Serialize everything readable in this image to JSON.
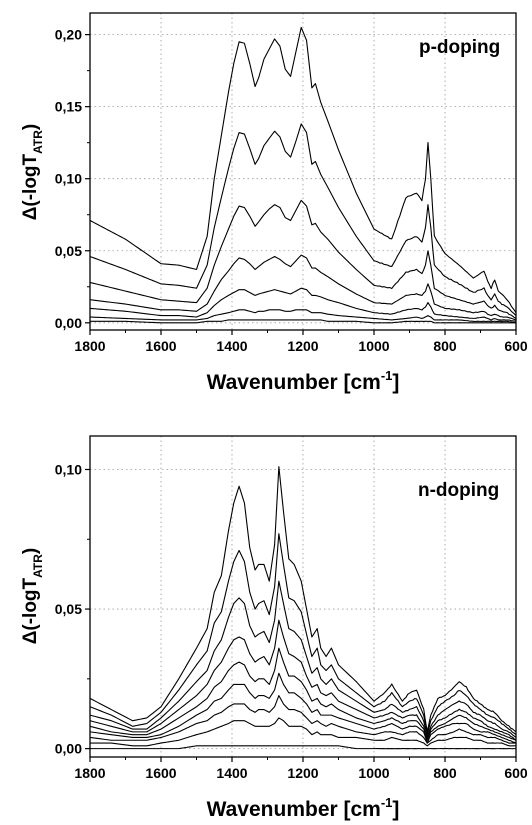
{
  "chart_data": [
    {
      "type": "line",
      "annotation": "p-doping",
      "xlabel_main": "Wavenumber [cm",
      "xlabel_sup": "-1",
      "xlabel_close": "]",
      "ylabel_main": "Δ(-logT",
      "ylabel_sub": "ATR",
      "ylabel_close": ")",
      "xlim": [
        1800,
        600
      ],
      "ylim": [
        -0.005,
        0.215
      ],
      "x_ticks": [
        1800,
        1600,
        1400,
        1200,
        1000,
        800,
        600
      ],
      "x_tick_labels": [
        "1800",
        "1600",
        "1400",
        "1200",
        "1000",
        "800",
        "600"
      ],
      "y_ticks": [
        0,
        0.05,
        0.1,
        0.15,
        0.2
      ],
      "y_tick_labels": [
        "0,00",
        "0,05",
        "0,10",
        "0,15",
        "0,20"
      ],
      "grid": true,
      "x": [
        1800,
        1700,
        1600,
        1550,
        1500,
        1470,
        1450,
        1430,
        1410,
        1395,
        1380,
        1365,
        1350,
        1335,
        1325,
        1310,
        1295,
        1280,
        1265,
        1250,
        1235,
        1220,
        1205,
        1190,
        1175,
        1165,
        1150,
        1130,
        1100,
        1050,
        1000,
        950,
        910,
        880,
        865,
        855,
        848,
        840,
        830,
        800,
        760,
        720,
        690,
        680,
        670,
        660,
        650,
        640,
        625,
        600
      ],
      "series": [
        {
          "values": [
            0.071,
            0.058,
            0.041,
            0.04,
            0.037,
            0.06,
            0.1,
            0.13,
            0.16,
            0.18,
            0.195,
            0.194,
            0.18,
            0.164,
            0.17,
            0.183,
            0.19,
            0.197,
            0.192,
            0.176,
            0.171,
            0.188,
            0.205,
            0.196,
            0.163,
            0.166,
            0.153,
            0.14,
            0.12,
            0.09,
            0.065,
            0.058,
            0.087,
            0.09,
            0.085,
            0.1,
            0.125,
            0.1,
            0.06,
            0.048,
            0.04,
            0.031,
            0.036,
            0.029,
            0.024,
            0.03,
            0.022,
            0.02,
            0.016,
            0.007
          ]
        },
        {
          "values": [
            0.046,
            0.037,
            0.027,
            0.026,
            0.024,
            0.04,
            0.066,
            0.087,
            0.107,
            0.121,
            0.132,
            0.131,
            0.121,
            0.11,
            0.114,
            0.123,
            0.128,
            0.133,
            0.129,
            0.119,
            0.115,
            0.126,
            0.138,
            0.132,
            0.11,
            0.112,
            0.103,
            0.094,
            0.08,
            0.06,
            0.043,
            0.039,
            0.057,
            0.06,
            0.056,
            0.066,
            0.082,
            0.066,
            0.04,
            0.032,
            0.027,
            0.021,
            0.024,
            0.019,
            0.016,
            0.02,
            0.015,
            0.013,
            0.011,
            0.005
          ]
        },
        {
          "values": [
            0.028,
            0.022,
            0.016,
            0.015,
            0.014,
            0.024,
            0.04,
            0.053,
            0.065,
            0.074,
            0.081,
            0.08,
            0.074,
            0.067,
            0.07,
            0.075,
            0.079,
            0.082,
            0.08,
            0.073,
            0.071,
            0.078,
            0.085,
            0.081,
            0.068,
            0.069,
            0.063,
            0.058,
            0.049,
            0.037,
            0.026,
            0.024,
            0.035,
            0.037,
            0.034,
            0.04,
            0.05,
            0.04,
            0.024,
            0.019,
            0.016,
            0.013,
            0.015,
            0.012,
            0.01,
            0.012,
            0.009,
            0.008,
            0.007,
            0.003
          ]
        },
        {
          "values": [
            0.016,
            0.013,
            0.009,
            0.009,
            0.008,
            0.013,
            0.022,
            0.03,
            0.036,
            0.041,
            0.045,
            0.044,
            0.041,
            0.037,
            0.039,
            0.042,
            0.044,
            0.046,
            0.044,
            0.041,
            0.039,
            0.043,
            0.047,
            0.045,
            0.038,
            0.038,
            0.035,
            0.032,
            0.027,
            0.02,
            0.014,
            0.013,
            0.019,
            0.02,
            0.019,
            0.022,
            0.027,
            0.022,
            0.013,
            0.01,
            0.009,
            0.007,
            0.008,
            0.006,
            0.005,
            0.006,
            0.005,
            0.004,
            0.004,
            0.002
          ]
        },
        {
          "values": [
            0.01,
            0.008,
            0.005,
            0.005,
            0.004,
            0.007,
            0.012,
            0.016,
            0.019,
            0.021,
            0.023,
            0.023,
            0.021,
            0.019,
            0.02,
            0.021,
            0.022,
            0.023,
            0.022,
            0.021,
            0.02,
            0.022,
            0.024,
            0.023,
            0.019,
            0.019,
            0.018,
            0.016,
            0.014,
            0.01,
            0.007,
            0.006,
            0.009,
            0.01,
            0.009,
            0.011,
            0.014,
            0.011,
            0.006,
            0.005,
            0.004,
            0.003,
            0.004,
            0.003,
            0.002,
            0.003,
            0.002,
            0.002,
            0.002,
            0.001
          ]
        },
        {
          "values": [
            0.004,
            0.003,
            0.002,
            0.002,
            0.002,
            0.003,
            0.005,
            0.006,
            0.007,
            0.008,
            0.009,
            0.009,
            0.008,
            0.007,
            0.008,
            0.008,
            0.009,
            0.009,
            0.009,
            0.008,
            0.008,
            0.009,
            0.009,
            0.009,
            0.007,
            0.007,
            0.007,
            0.006,
            0.005,
            0.004,
            0.003,
            0.002,
            0.003,
            0.004,
            0.003,
            0.004,
            0.005,
            0.004,
            0.002,
            0.002,
            0.002,
            0.001,
            0.001,
            0.001,
            0.001,
            0.001,
            0.001,
            0.001,
            0.001,
            0.0
          ]
        },
        {
          "values": [
            0.001,
            0.001,
            0.0,
            0.0,
            0.0,
            0.001,
            0.001,
            0.001,
            0.002,
            0.002,
            0.002,
            0.002,
            0.002,
            0.002,
            0.002,
            0.002,
            0.002,
            0.002,
            0.002,
            0.002,
            0.002,
            0.002,
            0.002,
            0.002,
            0.002,
            0.002,
            0.002,
            0.001,
            0.001,
            0.001,
            0.0,
            0.0,
            0.001,
            0.001,
            0.001,
            0.001,
            0.001,
            0.001,
            0.0,
            0.0,
            0.0,
            0.0,
            0.0,
            0.0,
            0.0,
            0.0,
            0.0,
            0.0,
            0.0,
            0.0
          ]
        }
      ]
    },
    {
      "type": "line",
      "annotation": "n-doping",
      "xlabel_main": "Wavenumber [cm",
      "xlabel_sup": "-1",
      "xlabel_close": "]",
      "ylabel_main": "Δ(-logT",
      "ylabel_sub": "ATR",
      "ylabel_close": ")",
      "xlim": [
        1800,
        600
      ],
      "ylim": [
        -0.003,
        0.112
      ],
      "x_ticks": [
        1800,
        1600,
        1400,
        1200,
        1000,
        800,
        600
      ],
      "x_tick_labels": [
        "1800",
        "1600",
        "1400",
        "1200",
        "1000",
        "800",
        "600"
      ],
      "y_ticks": [
        0,
        0.05,
        0.1
      ],
      "y_tick_labels": [
        "0,00",
        "0,05",
        "0,10"
      ],
      "grid": true,
      "x": [
        1800,
        1740,
        1680,
        1640,
        1600,
        1550,
        1500,
        1470,
        1450,
        1430,
        1410,
        1395,
        1380,
        1365,
        1350,
        1335,
        1325,
        1310,
        1295,
        1280,
        1268,
        1255,
        1240,
        1225,
        1205,
        1190,
        1175,
        1160,
        1150,
        1135,
        1120,
        1100,
        1050,
        1000,
        970,
        950,
        920,
        900,
        880,
        860,
        850,
        840,
        820,
        800,
        775,
        760,
        740,
        720,
        700,
        680,
        660,
        640,
        620,
        600
      ],
      "series": [
        {
          "values": [
            0.018,
            0.014,
            0.01,
            0.011,
            0.015,
            0.025,
            0.036,
            0.043,
            0.056,
            0.062,
            0.078,
            0.088,
            0.094,
            0.088,
            0.072,
            0.064,
            0.066,
            0.066,
            0.06,
            0.073,
            0.101,
            0.085,
            0.068,
            0.066,
            0.06,
            0.05,
            0.04,
            0.043,
            0.036,
            0.033,
            0.036,
            0.03,
            0.024,
            0.017,
            0.02,
            0.023,
            0.017,
            0.02,
            0.021,
            0.014,
            0.006,
            0.012,
            0.018,
            0.019,
            0.022,
            0.024,
            0.022,
            0.018,
            0.016,
            0.014,
            0.013,
            0.01,
            0.008,
            0.006
          ]
        },
        {
          "values": [
            0.015,
            0.012,
            0.008,
            0.009,
            0.013,
            0.021,
            0.03,
            0.035,
            0.045,
            0.049,
            0.06,
            0.067,
            0.071,
            0.067,
            0.056,
            0.05,
            0.052,
            0.053,
            0.048,
            0.058,
            0.077,
            0.066,
            0.054,
            0.053,
            0.049,
            0.041,
            0.033,
            0.036,
            0.03,
            0.028,
            0.03,
            0.025,
            0.02,
            0.015,
            0.017,
            0.02,
            0.015,
            0.017,
            0.018,
            0.012,
            0.005,
            0.01,
            0.015,
            0.017,
            0.019,
            0.021,
            0.019,
            0.016,
            0.014,
            0.012,
            0.011,
            0.009,
            0.007,
            0.005
          ]
        },
        {
          "values": [
            0.012,
            0.01,
            0.007,
            0.007,
            0.011,
            0.017,
            0.024,
            0.028,
            0.035,
            0.039,
            0.047,
            0.052,
            0.054,
            0.052,
            0.044,
            0.04,
            0.041,
            0.042,
            0.038,
            0.046,
            0.06,
            0.052,
            0.043,
            0.042,
            0.039,
            0.033,
            0.027,
            0.029,
            0.025,
            0.023,
            0.025,
            0.021,
            0.017,
            0.013,
            0.014,
            0.016,
            0.013,
            0.014,
            0.015,
            0.01,
            0.004,
            0.008,
            0.012,
            0.014,
            0.016,
            0.017,
            0.016,
            0.013,
            0.012,
            0.01,
            0.009,
            0.007,
            0.006,
            0.004
          ]
        },
        {
          "values": [
            0.01,
            0.008,
            0.006,
            0.006,
            0.009,
            0.014,
            0.019,
            0.023,
            0.028,
            0.031,
            0.036,
            0.039,
            0.04,
            0.039,
            0.034,
            0.031,
            0.032,
            0.033,
            0.03,
            0.036,
            0.046,
            0.04,
            0.034,
            0.033,
            0.031,
            0.026,
            0.022,
            0.023,
            0.02,
            0.019,
            0.02,
            0.017,
            0.014,
            0.011,
            0.012,
            0.013,
            0.011,
            0.012,
            0.012,
            0.008,
            0.003,
            0.007,
            0.01,
            0.011,
            0.013,
            0.014,
            0.013,
            0.011,
            0.01,
            0.008,
            0.007,
            0.006,
            0.005,
            0.003
          ]
        },
        {
          "values": [
            0.008,
            0.006,
            0.005,
            0.005,
            0.007,
            0.011,
            0.015,
            0.018,
            0.022,
            0.024,
            0.028,
            0.03,
            0.031,
            0.03,
            0.026,
            0.024,
            0.025,
            0.025,
            0.023,
            0.028,
            0.036,
            0.031,
            0.026,
            0.026,
            0.024,
            0.021,
            0.017,
            0.018,
            0.016,
            0.015,
            0.016,
            0.014,
            0.011,
            0.009,
            0.01,
            0.011,
            0.009,
            0.01,
            0.01,
            0.007,
            0.003,
            0.006,
            0.008,
            0.009,
            0.011,
            0.012,
            0.011,
            0.009,
            0.008,
            0.007,
            0.006,
            0.005,
            0.004,
            0.003
          ]
        },
        {
          "values": [
            0.006,
            0.005,
            0.004,
            0.004,
            0.005,
            0.008,
            0.012,
            0.014,
            0.017,
            0.018,
            0.021,
            0.023,
            0.023,
            0.023,
            0.02,
            0.018,
            0.019,
            0.019,
            0.018,
            0.021,
            0.027,
            0.023,
            0.02,
            0.02,
            0.018,
            0.016,
            0.013,
            0.014,
            0.012,
            0.012,
            0.012,
            0.011,
            0.009,
            0.007,
            0.008,
            0.009,
            0.007,
            0.008,
            0.008,
            0.006,
            0.002,
            0.005,
            0.007,
            0.008,
            0.009,
            0.009,
            0.009,
            0.007,
            0.006,
            0.006,
            0.005,
            0.004,
            0.003,
            0.002
          ]
        },
        {
          "values": [
            0.004,
            0.003,
            0.003,
            0.003,
            0.004,
            0.006,
            0.009,
            0.01,
            0.012,
            0.013,
            0.015,
            0.016,
            0.016,
            0.016,
            0.014,
            0.013,
            0.014,
            0.014,
            0.013,
            0.015,
            0.019,
            0.016,
            0.014,
            0.014,
            0.013,
            0.011,
            0.009,
            0.01,
            0.009,
            0.008,
            0.009,
            0.008,
            0.006,
            0.005,
            0.006,
            0.006,
            0.005,
            0.006,
            0.006,
            0.004,
            0.002,
            0.003,
            0.005,
            0.005,
            0.006,
            0.007,
            0.006,
            0.005,
            0.005,
            0.004,
            0.004,
            0.003,
            0.002,
            0.002
          ]
        },
        {
          "values": [
            0.002,
            0.002,
            0.001,
            0.001,
            0.002,
            0.003,
            0.005,
            0.006,
            0.007,
            0.008,
            0.009,
            0.01,
            0.01,
            0.01,
            0.009,
            0.008,
            0.008,
            0.008,
            0.008,
            0.009,
            0.011,
            0.01,
            0.008,
            0.008,
            0.008,
            0.007,
            0.005,
            0.006,
            0.005,
            0.005,
            0.005,
            0.004,
            0.004,
            0.003,
            0.003,
            0.004,
            0.003,
            0.003,
            0.003,
            0.002,
            0.001,
            0.002,
            0.003,
            0.003,
            0.004,
            0.004,
            0.004,
            0.003,
            0.003,
            0.002,
            0.002,
            0.002,
            0.001,
            0.001
          ]
        },
        {
          "values": [
            0.0,
            0.0,
            0.0,
            0.0,
            0.0,
            0.0,
            0.001,
            0.001,
            0.001,
            0.001,
            0.001,
            0.001,
            0.001,
            0.001,
            0.001,
            0.001,
            0.001,
            0.001,
            0.001,
            0.001,
            0.001,
            0.001,
            0.001,
            0.001,
            0.001,
            0.001,
            0.001,
            0.001,
            0.001,
            0.001,
            0.001,
            0.001,
            0.0,
            0.0,
            0.0,
            0.0,
            0.0,
            0.0,
            0.0,
            0.0,
            0.0,
            0.0,
            0.0,
            0.0,
            0.0,
            0.0,
            0.0,
            0.0,
            0.0,
            0.0,
            0.0,
            0.0,
            0.0,
            0.0
          ]
        }
      ]
    }
  ]
}
